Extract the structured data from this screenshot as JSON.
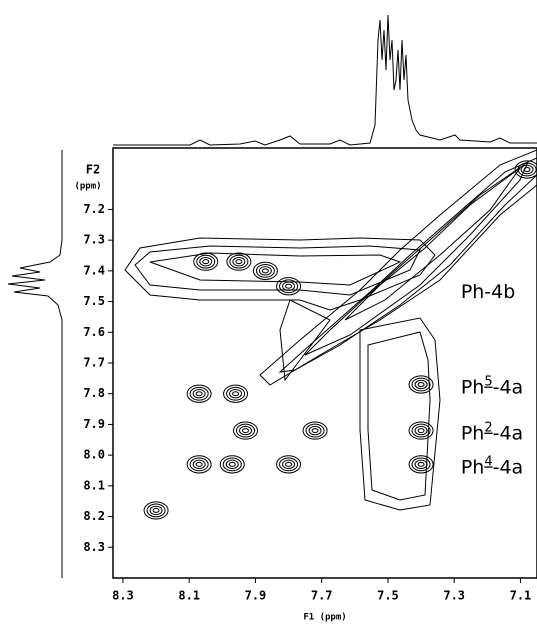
{
  "chart_data": {
    "type": "contour",
    "x_label": "F1  (ppm)",
    "y_label_top": "F2",
    "y_label_unit": "(ppm)",
    "xlim": [
      8.33,
      7.05
    ],
    "ylim": [
      7.0,
      8.4
    ],
    "xticks": [
      {
        "value": 8.3,
        "label": "8.3"
      },
      {
        "value": 8.1,
        "label": "8.1"
      },
      {
        "value": 7.9,
        "label": "7.9"
      },
      {
        "value": 7.7,
        "label": "7.7"
      },
      {
        "value": 7.5,
        "label": "7.5"
      },
      {
        "value": 7.3,
        "label": "7.3"
      },
      {
        "value": 7.1,
        "label": "7.1"
      }
    ],
    "yticks": [
      {
        "value": 7.2,
        "label": "7.2"
      },
      {
        "value": 7.3,
        "label": "7.3"
      },
      {
        "value": 7.4,
        "label": "7.4"
      },
      {
        "value": 7.5,
        "label": "7.5"
      },
      {
        "value": 7.6,
        "label": "7.6"
      },
      {
        "value": 7.7,
        "label": "7.7"
      },
      {
        "value": 7.8,
        "label": "7.8"
      },
      {
        "value": 7.9,
        "label": "7.9"
      },
      {
        "value": 8.0,
        "label": "8.0"
      },
      {
        "value": 8.1,
        "label": "8.1"
      },
      {
        "value": 8.2,
        "label": "8.2"
      },
      {
        "value": 8.3,
        "label": "8.3"
      }
    ],
    "peaks": {
      "x": [
        8.05,
        7.95,
        7.87,
        7.8,
        8.07,
        7.4,
        8.07,
        7.93,
        7.8,
        7.4,
        7.4,
        7.08,
        8.2,
        7.96,
        7.97,
        7.72
      ],
      "y": [
        7.37,
        7.37,
        7.4,
        7.45,
        7.8,
        7.77,
        8.03,
        7.92,
        8.03,
        7.92,
        8.03,
        7.07,
        8.18,
        7.8,
        8.03,
        7.92
      ]
    },
    "annotations": [
      {
        "text": "Ph-4b",
        "x": 7.28,
        "y": 7.47
      },
      {
        "prefix": "Ph",
        "sup": "5",
        "suffix": "-4a",
        "x": 7.28,
        "y": 7.78
      },
      {
        "prefix": "Ph",
        "sup": "2",
        "suffix": "-4a",
        "x": 7.28,
        "y": 7.93
      },
      {
        "prefix": "Ph",
        "sup": "4",
        "suffix": "-4a",
        "x": 7.28,
        "y": 8.04
      }
    ]
  }
}
